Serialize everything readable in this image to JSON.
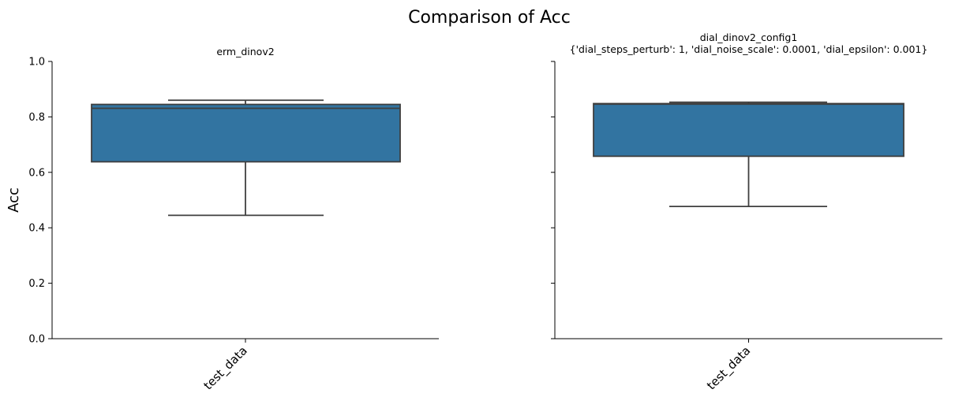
{
  "figure_title": "Comparison of Acc",
  "ylabel": "Acc",
  "y_ticks": [
    "0.0",
    "0.2",
    "0.4",
    "0.6",
    "0.8",
    "1.0"
  ],
  "colors": {
    "box_fill": "#3274a1",
    "box_edge": "#3f3f3f",
    "axis": "#000000"
  },
  "panels": [
    {
      "title_lines": [
        "erm_dinov2"
      ]
    },
    {
      "title_lines": [
        "dial_dinov2_config1",
        "{'dial_steps_perturb': 1, 'dial_noise_scale': 0.0001, 'dial_epsilon': 0.001}"
      ]
    }
  ],
  "chart_data": [
    {
      "type": "box",
      "title": "erm_dinov2",
      "categories": [
        "test_data"
      ],
      "ylabel": "Acc",
      "ylim": [
        0,
        1
      ],
      "yticks": [
        0.0,
        0.2,
        0.4,
        0.6,
        0.8,
        1.0
      ],
      "boxes": [
        {
          "category": "test_data",
          "whisker_low": 0.445,
          "q1": 0.638,
          "median": 0.831,
          "q3": 0.845,
          "whisker_high": 0.86
        }
      ]
    },
    {
      "type": "box",
      "title": "dial_dinov2_config1 {'dial_steps_perturb': 1, 'dial_noise_scale': 0.0001, 'dial_epsilon': 0.001}",
      "categories": [
        "test_data"
      ],
      "ylim": [
        0,
        1
      ],
      "yticks": [
        0.0,
        0.2,
        0.4,
        0.6,
        0.8,
        1.0
      ],
      "boxes": [
        {
          "category": "test_data",
          "whisker_low": 0.477,
          "q1": 0.658,
          "median": 0.846,
          "q3": 0.848,
          "whisker_high": 0.853
        }
      ]
    }
  ]
}
